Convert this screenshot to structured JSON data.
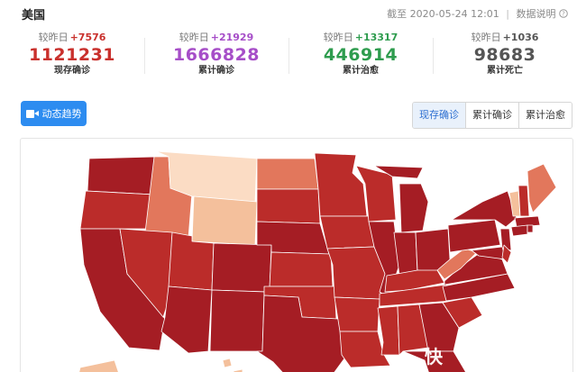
{
  "header": {
    "region": "美国",
    "updated_prefix": "截至",
    "updated_time": "2020-05-24 12:01",
    "separator": "|",
    "explain": "数据说明",
    "explain_icon": "question-icon"
  },
  "stats": [
    {
      "delta_label": "较昨日",
      "delta": "+7576",
      "value": "1121231",
      "label": "现存确诊",
      "color": "#c9302c"
    },
    {
      "delta_label": "较昨日",
      "delta": "+21929",
      "value": "1666828",
      "label": "累计确诊",
      "color": "#a64ec8"
    },
    {
      "delta_label": "较昨日",
      "delta": "+13317",
      "value": "446914",
      "label": "累计治愈",
      "color": "#2e9c4e"
    },
    {
      "delta_label": "较昨日",
      "delta": "+1036",
      "value": "98683",
      "label": "累计死亡",
      "color": "#555555"
    }
  ],
  "controls": {
    "trend_button": "动态趋势",
    "trend_icon": "video-camera-icon",
    "tabs": [
      "现存确诊",
      "累计确诊",
      "累计治愈"
    ],
    "active_tab": 0
  },
  "map": {
    "colors": {
      "darkest": "#a51d24",
      "dark": "#bb2c2a",
      "medium": "#cd4638",
      "light": "#e2775c",
      "pale": "#f4c09c",
      "palest": "#fbdcc4"
    }
  },
  "watermark": "快"
}
